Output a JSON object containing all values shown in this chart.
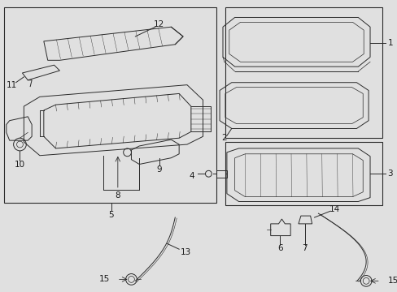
{
  "bg_color": "#e0e0e0",
  "line_color": "#2a2a2a",
  "label_color": "#1a1a1a",
  "fs": 7.5,
  "lw": 0.7
}
